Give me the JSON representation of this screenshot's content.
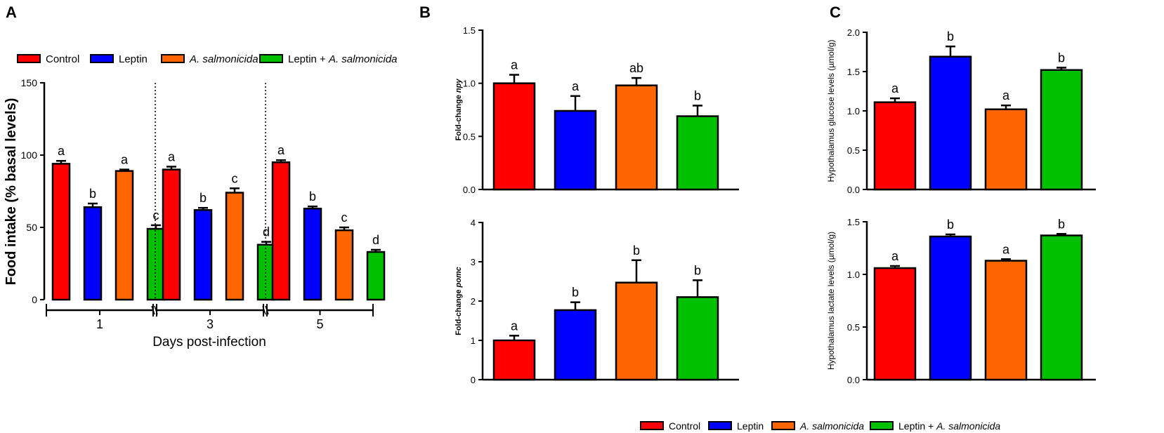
{
  "panel_labels": {
    "A": "A",
    "B": "B",
    "C": "C"
  },
  "series_names": [
    "Control",
    "Leptin",
    "A. salmonicida",
    "Leptin + A. salmonicida"
  ],
  "legend_top": {
    "items": [
      {
        "pre": "",
        "ital": "",
        "post": "Control"
      },
      {
        "pre": "",
        "ital": "",
        "post": "Leptin"
      },
      {
        "pre": "",
        "ital": "A. salmonicida",
        "post": ""
      },
      {
        "pre": "Leptin + ",
        "ital": "A. salmonicida",
        "post": ""
      }
    ]
  },
  "legend_bottom": {
    "items": [
      {
        "pre": "",
        "ital": "",
        "post": "Control"
      },
      {
        "pre": "",
        "ital": "",
        "post": "Leptin"
      },
      {
        "pre": "",
        "ital": "A. salmonicida",
        "post": ""
      },
      {
        "pre": "Leptin + ",
        "ital": "A. salmonicida",
        "post": ""
      }
    ]
  },
  "colors": {
    "control": "#ff0000",
    "leptin": "#0000ff",
    "asal": "#ff6600",
    "combo": "#00c000"
  },
  "chart_data": [
    {
      "id": "A",
      "type": "bar",
      "ylabel": "Food intake (% basal levels)",
      "xlabel": "Days post-infection",
      "ylim": [
        0,
        150
      ],
      "yticks": [
        "0",
        "50",
        "100",
        "150"
      ],
      "categories": [
        "1",
        "3",
        "5"
      ],
      "series": [
        {
          "name": "Control",
          "values": [
            94,
            90,
            95
          ],
          "errors": [
            2,
            2,
            1.5
          ],
          "letters": [
            "a",
            "a",
            "a"
          ]
        },
        {
          "name": "Leptin",
          "values": [
            64,
            62,
            63
          ],
          "errors": [
            2.5,
            1.5,
            1.5
          ],
          "letters": [
            "b",
            "b",
            "b"
          ]
        },
        {
          "name": "A. salmonicida",
          "values": [
            89,
            74,
            48
          ],
          "errors": [
            1,
            3,
            2
          ],
          "letters": [
            "a",
            "c",
            "c"
          ]
        },
        {
          "name": "Leptin + A. salmonicida",
          "values": [
            49,
            38,
            33
          ],
          "errors": [
            2.5,
            2,
            1.5
          ],
          "letters": [
            "c",
            "d",
            "d"
          ]
        }
      ]
    },
    {
      "id": "B-top",
      "type": "bar",
      "ylabel_prefix": "Fold-change ",
      "ylabel_gene": "npy",
      "ylim": [
        0,
        1.5
      ],
      "yticks": [
        "0.0",
        "0.5",
        "1.0",
        "1.5"
      ],
      "categories": [
        "Control",
        "Leptin",
        "A. salmonicida",
        "Leptin + A. salmonicida"
      ],
      "values": [
        1.0,
        0.74,
        0.98,
        0.69
      ],
      "errors": [
        0.08,
        0.14,
        0.07,
        0.1
      ],
      "letters": [
        "a",
        "a",
        "ab",
        "b"
      ]
    },
    {
      "id": "B-bottom",
      "type": "bar",
      "ylabel_prefix": "Fold-change ",
      "ylabel_gene": "pomc",
      "ylim": [
        0,
        4
      ],
      "yticks": [
        "0",
        "1",
        "2",
        "3",
        "4"
      ],
      "categories": [
        "Control",
        "Leptin",
        "A. salmonicida",
        "Leptin + A. salmonicida"
      ],
      "values": [
        1.0,
        1.77,
        2.47,
        2.1
      ],
      "errors": [
        0.12,
        0.2,
        0.57,
        0.43
      ],
      "letters": [
        "a",
        "b",
        "b",
        "b"
      ]
    },
    {
      "id": "C-top",
      "type": "bar",
      "ylabel": "Hypothalamus  glucose levels (µmol/g)",
      "ylim": [
        0,
        2.0
      ],
      "yticks": [
        "0.0",
        "0.5",
        "1.0",
        "1.5",
        "2.0"
      ],
      "categories": [
        "Control",
        "Leptin",
        "A. salmonicida",
        "Leptin + A. salmonicida"
      ],
      "values": [
        1.11,
        1.69,
        1.02,
        1.52
      ],
      "errors": [
        0.05,
        0.13,
        0.05,
        0.03
      ],
      "letters": [
        "a",
        "b",
        "a",
        "b"
      ]
    },
    {
      "id": "C-bottom",
      "type": "bar",
      "ylabel": "Hypothalamus  lactate levels (µmol/g)",
      "ylim": [
        0.0,
        1.5
      ],
      "yticks": [
        "0.0",
        "0.5",
        "1.0",
        "1.5"
      ],
      "categories": [
        "Control",
        "Leptin",
        "A. salmonicida",
        "Leptin + A. salmonicida"
      ],
      "values": [
        1.06,
        1.36,
        1.13,
        1.37
      ],
      "errors": [
        0.02,
        0.02,
        0.015,
        0.015
      ],
      "letters": [
        "a",
        "b",
        "a",
        "b"
      ]
    }
  ]
}
